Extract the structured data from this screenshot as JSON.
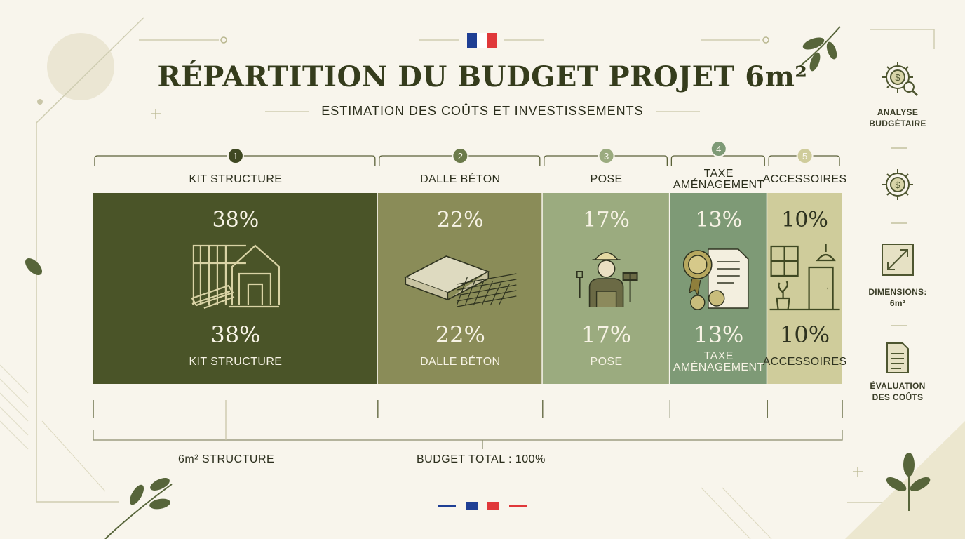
{
  "header": {
    "title": "RÉPARTITION DU BUDGET PROJET 6m²",
    "subtitle": "ESTIMATION DES COÛTS ET INVESTISSEMENTS"
  },
  "colors": {
    "flag_blue": "#1f3f94",
    "flag_white": "#ffffff",
    "flag_red": "#e0383a"
  },
  "chart_data": {
    "type": "bar",
    "subtype": "stacked-100-percent",
    "categories": [
      "KIT STRUCTURE",
      "DALLE BÉTON",
      "POSE",
      "TAXE AMÉNAGEMENT",
      "ACCESSOIRES"
    ],
    "values": [
      38,
      22,
      17,
      13,
      10
    ],
    "unit": "%",
    "numbers": [
      "1",
      "2",
      "3",
      "4",
      "5"
    ],
    "value_labels": [
      "38%",
      "22%",
      "17%",
      "13%",
      "10%"
    ],
    "colors": [
      "#4a5428",
      "#8a8c58",
      "#9bab7f",
      "#7e9a76",
      "#cfcc9b"
    ],
    "text_colors": [
      "#f7f3e5",
      "#f7f3e5",
      "#f7f3e5",
      "#f7f3e5",
      "#2f3320"
    ],
    "icons": [
      "house-frame-icon",
      "concrete-slab-icon",
      "worker-icon",
      "tax-document-icon",
      "accessories-icon"
    ],
    "legend": "none",
    "grid": false
  },
  "sidebar": {
    "items": [
      {
        "label": "ANALYSE\nBUDGÉTAIRE",
        "icon": "gear-magnifier-icon"
      },
      {
        "label": "",
        "icon": "gear-dollar-icon"
      },
      {
        "label": "DIMENSIONS:\n6m²",
        "icon": "resize-arrow-icon"
      },
      {
        "label": "ÉVALUATION\nDES COÛTS",
        "icon": "document-icon"
      }
    ]
  },
  "footer": {
    "structure_label": "6m² STRUCTURE",
    "total_label": "BUDGET TOTAL : 100%"
  }
}
